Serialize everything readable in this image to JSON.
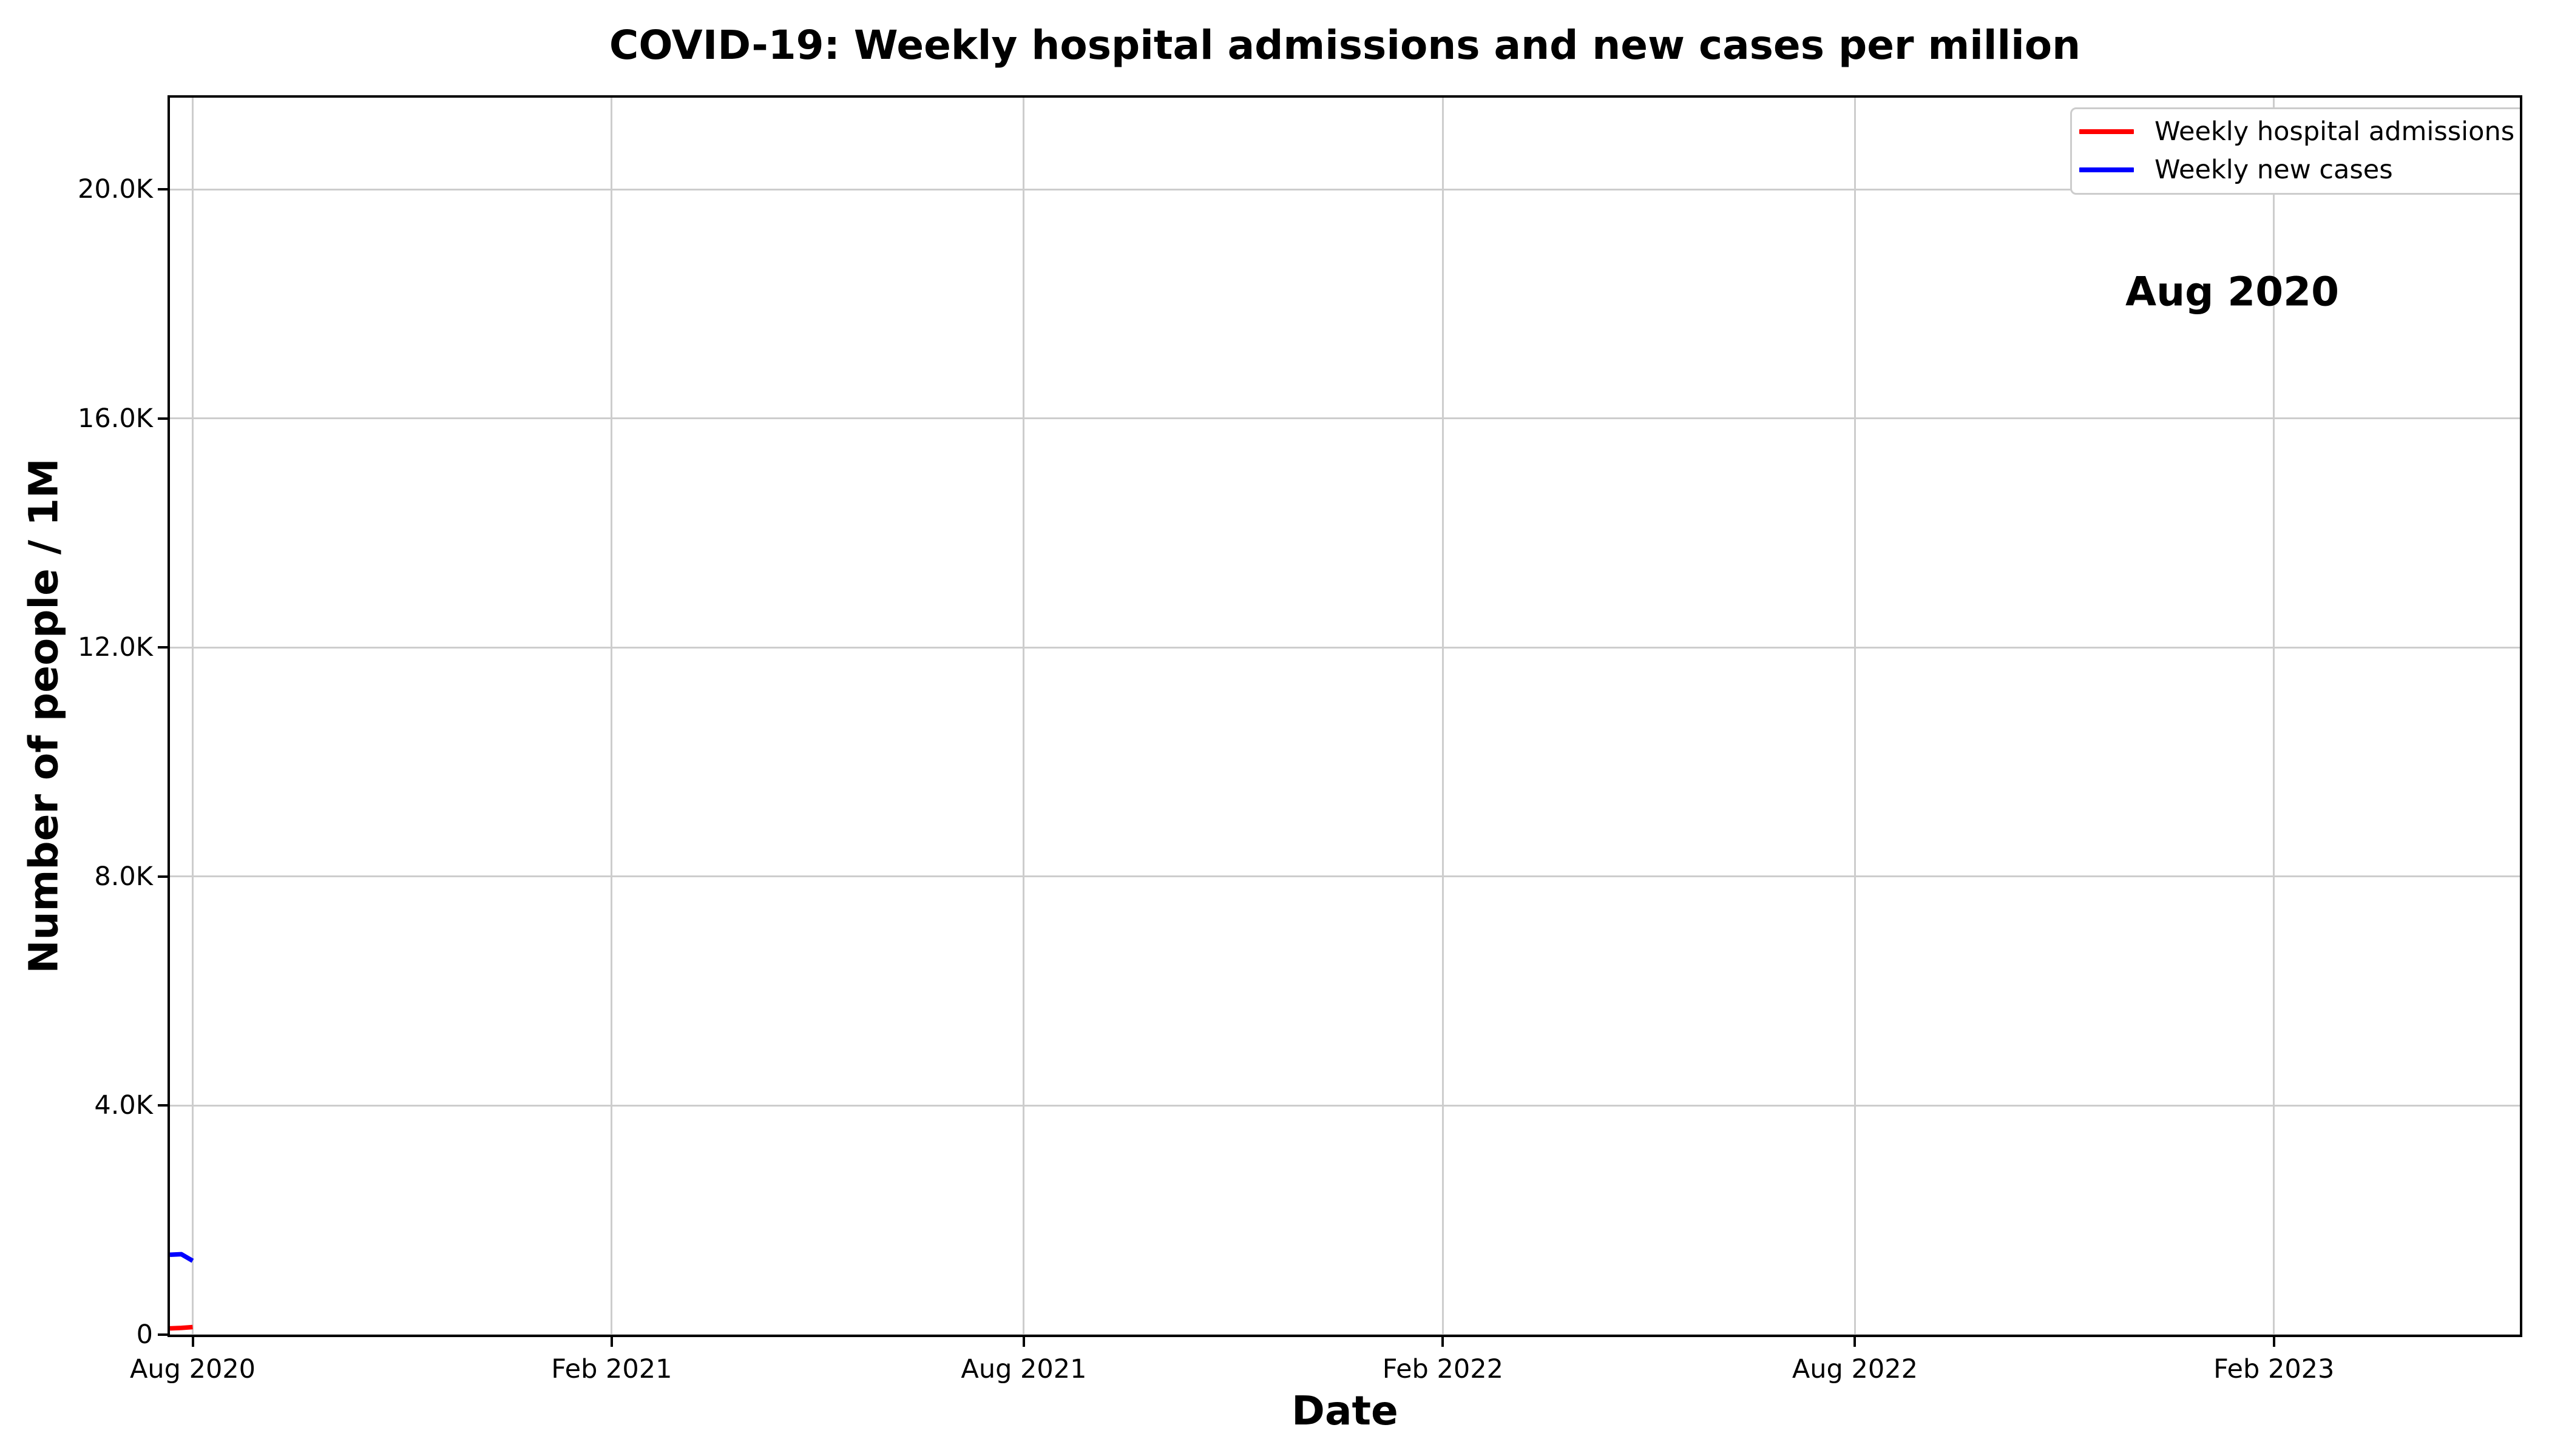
{
  "chart_data": {
    "type": "line",
    "title": "COVID-19: Weekly hospital admissions and new cases per million",
    "xlabel": "Date",
    "ylabel": "Number of people / 1M",
    "annotation": "Aug 2020",
    "grid": true,
    "legend_position": "upper right",
    "ylim": [
      0,
      21600
    ],
    "xlim": [
      "2020-07-22",
      "2023-05-20"
    ],
    "y_ticks": [
      {
        "value": 0,
        "label": "0"
      },
      {
        "value": 4000,
        "label": "4.0K"
      },
      {
        "value": 8000,
        "label": "8.0K"
      },
      {
        "value": 12000,
        "label": "12.0K"
      },
      {
        "value": 16000,
        "label": "16.0K"
      },
      {
        "value": 20000,
        "label": "20.0K"
      }
    ],
    "x_ticks": [
      {
        "date": "2020-08-01",
        "label": "Aug 2020"
      },
      {
        "date": "2021-02-01",
        "label": "Feb 2021"
      },
      {
        "date": "2021-08-01",
        "label": "Aug 2021"
      },
      {
        "date": "2022-02-01",
        "label": "Feb 2022"
      },
      {
        "date": "2022-08-01",
        "label": "Aug 2022"
      },
      {
        "date": "2023-02-01",
        "label": "Feb 2023"
      }
    ],
    "series": [
      {
        "name": "Weekly hospital admissions",
        "color": "#ff0000",
        "points": [
          {
            "date": "2020-07-22",
            "value": 110
          },
          {
            "date": "2020-07-27",
            "value": 118
          },
          {
            "date": "2020-08-01",
            "value": 132
          }
        ]
      },
      {
        "name": "Weekly new cases",
        "color": "#0000ff",
        "points": [
          {
            "date": "2020-07-22",
            "value": 1395
          },
          {
            "date": "2020-07-27",
            "value": 1405
          },
          {
            "date": "2020-08-01",
            "value": 1290
          }
        ]
      }
    ],
    "colors": {
      "grid": "#cdcdcd",
      "spine": "#000000",
      "legend_border": "#cccccc",
      "text": "#000000",
      "background": "#ffffff"
    }
  }
}
